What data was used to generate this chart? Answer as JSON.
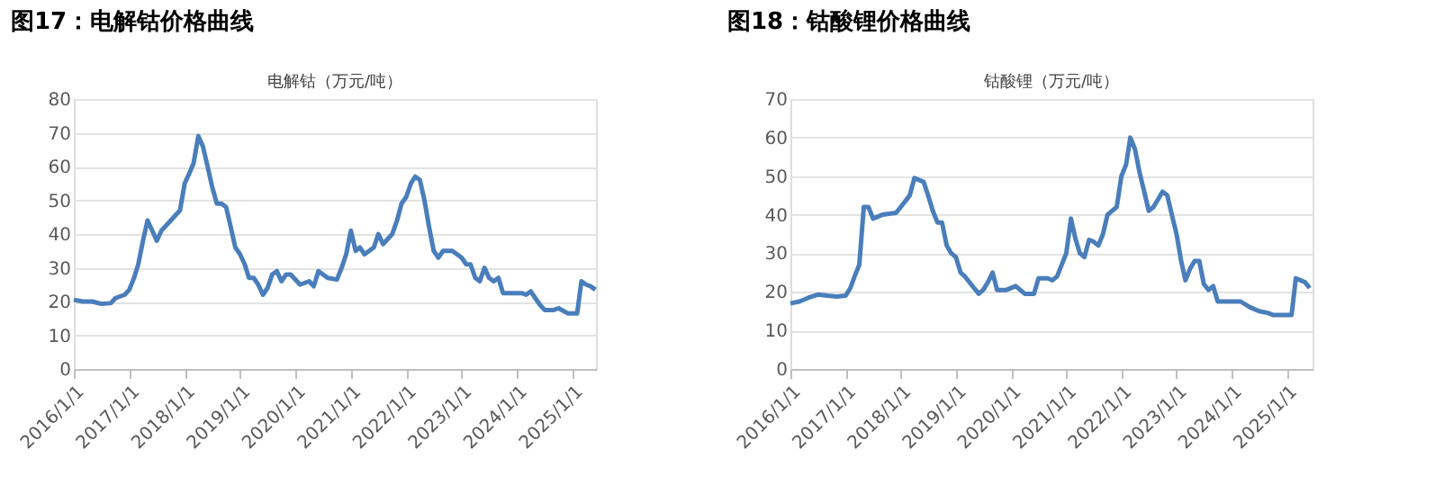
{
  "chart_data": [
    {
      "type": "line",
      "title": "图17：电解钴价格曲线",
      "subtitle": "电解钴（万元/吨）",
      "grid": "y",
      "line_style": "solid",
      "marker": "none",
      "xlim": [
        "2016-01-01",
        "2025-06-05"
      ],
      "ylim": [
        0,
        80
      ],
      "yticks": [
        0,
        10,
        20,
        30,
        40,
        50,
        60,
        70,
        80
      ],
      "xticks": [
        {
          "value": "2016-01-01",
          "label": "2016/1/1"
        },
        {
          "value": "2017-01-01",
          "label": "2017/1/1"
        },
        {
          "value": "2018-01-01",
          "label": "2018/1/1"
        },
        {
          "value": "2019-01-01",
          "label": "2019/1/1"
        },
        {
          "value": "2020-01-01",
          "label": "2020/1/1"
        },
        {
          "value": "2021-01-01",
          "label": "2021/1/1"
        },
        {
          "value": "2022-01-01",
          "label": "2022/1/1"
        },
        {
          "value": "2023-01-01",
          "label": "2023/1/1"
        },
        {
          "value": "2024-01-01",
          "label": "2024/1/1"
        },
        {
          "value": "2025-01-01",
          "label": "2025/1/1"
        }
      ],
      "x": [
        "2016-01",
        "2016-03",
        "2016-05",
        "2016-07",
        "2016-09",
        "2016-10",
        "2016-12",
        "2017-01",
        "2017-02",
        "2017-03",
        "2017-04",
        "2017-05",
        "2017-06",
        "2017-07",
        "2017-08",
        "2017-10",
        "2017-12",
        "2018-01",
        "2018-02",
        "2018-03",
        "2018-04",
        "2018-05",
        "2018-06",
        "2018-07",
        "2018-08",
        "2018-09",
        "2018-10",
        "2018-11",
        "2018-12",
        "2019-01",
        "2019-02",
        "2019-03",
        "2019-04",
        "2019-05",
        "2019-06",
        "2019-07",
        "2019-08",
        "2019-09",
        "2019-10",
        "2019-11",
        "2019-12",
        "2020-02",
        "2020-04",
        "2020-05",
        "2020-06",
        "2020-08",
        "2020-10",
        "2020-11",
        "2020-12",
        "2021-01",
        "2021-02",
        "2021-03",
        "2021-04",
        "2021-06",
        "2021-07",
        "2021-08",
        "2021-10",
        "2021-11",
        "2021-12",
        "2022-01",
        "2022-02",
        "2022-03",
        "2022-04",
        "2022-05",
        "2022-06",
        "2022-07",
        "2022-08",
        "2022-09",
        "2022-11",
        "2022-12",
        "2023-01",
        "2023-02",
        "2023-03",
        "2023-04",
        "2023-05",
        "2023-06",
        "2023-07",
        "2023-08",
        "2023-09",
        "2023-10",
        "2023-12",
        "2024-02",
        "2024-03",
        "2024-04",
        "2024-05",
        "2024-06",
        "2024-07",
        "2024-09",
        "2024-10",
        "2024-12",
        "2025-02",
        "2025-03",
        "2025-04",
        "2025-05",
        "2025-06"
      ],
      "series": [
        {
          "color": "#4a7ebb",
          "values": [
            20.5,
            20,
            20,
            19.3,
            19.5,
            21,
            22,
            23.5,
            27,
            31,
            38,
            44,
            41,
            38,
            41,
            44,
            47,
            55,
            58,
            61,
            69,
            66,
            60,
            54,
            49,
            49,
            48,
            42,
            36,
            34,
            31,
            27,
            27,
            25,
            22,
            24,
            28,
            29,
            26,
            28,
            28,
            25,
            26,
            24.5,
            29,
            27,
            26.5,
            30,
            34,
            41,
            35,
            36,
            34,
            36,
            40,
            37,
            40,
            44,
            49,
            51,
            55,
            57,
            56,
            50,
            42,
            35,
            33,
            35,
            35,
            34,
            33,
            31,
            31,
            27,
            26,
            30,
            27,
            26,
            27,
            22.5,
            22.5,
            22.5,
            22,
            23,
            21,
            19,
            17.5,
            17.5,
            18,
            16.5,
            16.5,
            26,
            25,
            24.5,
            23.5
          ]
        }
      ]
    },
    {
      "type": "line",
      "title": "图18：钴酸锂价格曲线",
      "subtitle": "钴酸锂（万元/吨）",
      "grid": "y",
      "line_style": "solid",
      "marker": "none",
      "xlim": [
        "2016-01-01",
        "2025-06-20"
      ],
      "ylim": [
        0,
        70
      ],
      "yticks": [
        0,
        10,
        20,
        30,
        40,
        50,
        60,
        70
      ],
      "xticks": [
        {
          "value": "2016-01-01",
          "label": "2016/1/1"
        },
        {
          "value": "2017-01-01",
          "label": "2017/1/1"
        },
        {
          "value": "2018-01-01",
          "label": "2018/1/1"
        },
        {
          "value": "2019-01-01",
          "label": "2019/1/1"
        },
        {
          "value": "2020-01-01",
          "label": "2020/1/1"
        },
        {
          "value": "2021-01-01",
          "label": "2021/1/1"
        },
        {
          "value": "2022-01-01",
          "label": "2022/1/1"
        },
        {
          "value": "2023-01-01",
          "label": "2023/1/1"
        },
        {
          "value": "2024-01-01",
          "label": "2024/1/1"
        },
        {
          "value": "2025-01-01",
          "label": "2025/1/1"
        }
      ],
      "x": [
        "2016-01",
        "2016-03",
        "2016-05",
        "2016-07",
        "2016-09",
        "2016-11",
        "2017-01",
        "2017-02",
        "2017-03",
        "2017-04",
        "2017-05",
        "2017-06",
        "2017-07",
        "2017-09",
        "2017-12",
        "2018-01",
        "2018-03",
        "2018-04",
        "2018-06",
        "2018-07",
        "2018-08",
        "2018-09",
        "2018-10",
        "2018-11",
        "2018-12",
        "2019-01",
        "2019-02",
        "2019-03",
        "2019-05",
        "2019-06",
        "2019-07",
        "2019-08",
        "2019-09",
        "2019-10",
        "2019-12",
        "2020-02",
        "2020-04",
        "2020-06",
        "2020-07",
        "2020-09",
        "2020-10",
        "2020-11",
        "2021-01",
        "2021-02",
        "2021-03",
        "2021-04",
        "2021-05",
        "2021-06",
        "2021-07",
        "2021-08",
        "2021-09",
        "2021-10",
        "2021-12",
        "2022-01",
        "2022-02",
        "2022-03",
        "2022-04",
        "2022-05",
        "2022-06",
        "2022-07",
        "2022-08",
        "2022-09",
        "2022-10",
        "2022-11",
        "2022-12",
        "2023-01",
        "2023-02",
        "2023-03",
        "2023-04",
        "2023-05",
        "2023-06",
        "2023-07",
        "2023-08",
        "2023-09",
        "2023-10",
        "2023-12",
        "2024-03",
        "2024-05",
        "2024-07",
        "2024-09",
        "2024-10",
        "2025-01",
        "2025-02",
        "2025-03",
        "2025-04",
        "2025-05",
        "2025-06"
      ],
      "series": [
        {
          "color": "#4a7ebb",
          "values": [
            17,
            17.5,
            18.5,
            19.3,
            19,
            18.8,
            19,
            21,
            24,
            27,
            42,
            42,
            39,
            40,
            40.5,
            42,
            45,
            49.5,
            48.5,
            45,
            41,
            38,
            38,
            32,
            30,
            29,
            25,
            24,
            21,
            19.5,
            20.5,
            22.5,
            25,
            20.5,
            20.5,
            21.5,
            19.5,
            19.5,
            23.5,
            23.5,
            23,
            24,
            30,
            39,
            34,
            30,
            29,
            33.5,
            33,
            32,
            35,
            40,
            42,
            50,
            53,
            60,
            57,
            51,
            46,
            41,
            42,
            44,
            46,
            45,
            40,
            35,
            28,
            23,
            26,
            28,
            28,
            22,
            20.5,
            21.5,
            17.5,
            17.5,
            17.5,
            16,
            15,
            14.5,
            14,
            14,
            14,
            23.5,
            23,
            22.5,
            21
          ]
        }
      ]
    }
  ]
}
